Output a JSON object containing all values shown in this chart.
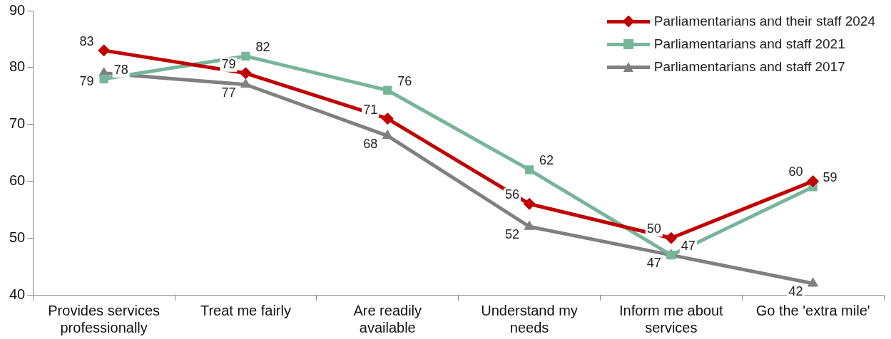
{
  "chart_data": {
    "type": "line",
    "categories": [
      "Provides services professionally",
      "Treat me fairly",
      "Are readily available",
      "Understand my needs",
      "Inform me about services",
      "Go the 'extra mile'"
    ],
    "series": [
      {
        "name": "Parliamentarians and their staff 2024",
        "color": "#c00000",
        "marker": "diamond",
        "values": [
          83,
          79,
          71,
          56,
          50,
          60
        ]
      },
      {
        "name": "Parliamentarians and staff 2021",
        "color": "#77b59a",
        "marker": "square",
        "values": [
          78,
          82,
          76,
          62,
          47,
          59
        ]
      },
      {
        "name": "Parliamentarians and staff 2017",
        "color": "#808080",
        "marker": "triangle",
        "values": [
          79,
          77,
          68,
          52,
          47,
          42
        ]
      }
    ],
    "ylim": [
      40,
      90
    ],
    "yticks": [
      40,
      50,
      60,
      70,
      80,
      90
    ],
    "grid": false,
    "legend": "top right",
    "data_labels": true,
    "line_style": "solid"
  }
}
